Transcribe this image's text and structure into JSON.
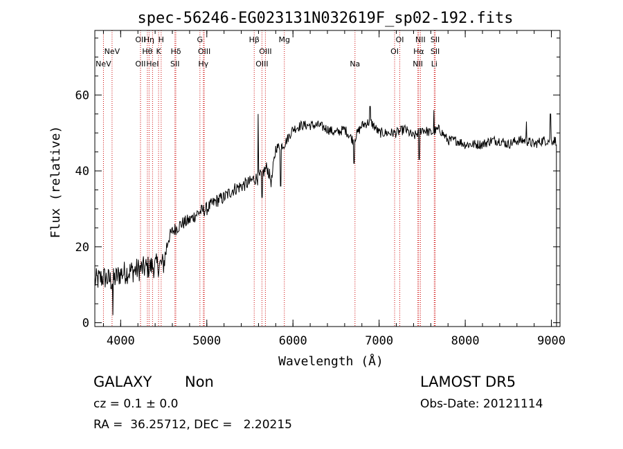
{
  "chart_data": {
    "type": "line",
    "title": "spec-56246-EG023131N032619F_sp02-192.fits",
    "xlabel": "Wavelength (Å)",
    "ylabel": "Flux (relative)",
    "xlim": [
      3700,
      9100
    ],
    "ylim": [
      -1,
      77
    ],
    "x_ticks": [
      4000,
      5000,
      6000,
      7000,
      8000,
      9000
    ],
    "y_ticks": [
      0,
      20,
      40,
      60
    ],
    "grid": false,
    "line_color": "#000000",
    "marker_color": "#cc0000",
    "spectrum_anchors": {
      "x": [
        3700,
        3800,
        3900,
        4000,
        4100,
        4200,
        4300,
        4400,
        4500,
        4550,
        4600,
        4700,
        4800,
        4900,
        5000,
        5100,
        5200,
        5300,
        5400,
        5500,
        5550,
        5600,
        5700,
        5750,
        5800,
        5900,
        6000,
        6100,
        6200,
        6300,
        6400,
        6500,
        6600,
        6700,
        6800,
        6900,
        7000,
        7100,
        7200,
        7300,
        7400,
        7500,
        7600,
        7700,
        7800,
        7900,
        8000,
        8100,
        8200,
        8300,
        8400,
        8500,
        8600,
        8700,
        8800,
        8900,
        9000,
        9060
      ],
      "y": [
        11,
        12,
        11,
        13,
        13.5,
        14,
        14.5,
        15,
        15.5,
        22,
        24,
        26,
        27,
        29,
        30,
        32,
        33,
        35,
        36,
        37,
        38,
        38,
        41,
        37,
        46,
        47,
        51,
        52,
        52,
        52,
        51,
        50,
        51,
        48,
        52,
        53,
        50,
        50,
        50,
        51,
        49,
        51,
        50,
        51,
        48,
        48,
        47,
        47,
        47,
        48,
        48,
        47,
        48,
        48,
        47,
        48,
        48,
        48
      ]
    },
    "spectral_lines": [
      {
        "label": "NeV",
        "x": 3800,
        "row": 3
      },
      {
        "label": "NeV",
        "x": 3900,
        "row": 2
      },
      {
        "label": "OII",
        "x": 4230,
        "row": 1
      },
      {
        "label": "OII",
        "x": 4230,
        "row": 3
      },
      {
        "label": "Hη",
        "x": 4330,
        "row": 1
      },
      {
        "label": "Hθ",
        "x": 4310,
        "row": 2
      },
      {
        "label": "HeI",
        "x": 4370,
        "row": 3
      },
      {
        "label": "H",
        "x": 4470,
        "row": 1
      },
      {
        "label": "K",
        "x": 4440,
        "row": 2
      },
      {
        "label": "Hδ",
        "x": 4640,
        "row": 2
      },
      {
        "label": "SII",
        "x": 4630,
        "row": 3
      },
      {
        "label": "G",
        "x": 4920,
        "row": 1
      },
      {
        "label": "OIII",
        "x": 4970,
        "row": 2
      },
      {
        "label": "Hγ",
        "x": 4960,
        "row": 3
      },
      {
        "label": "Hβ",
        "x": 5550,
        "row": 1
      },
      {
        "label": "OIII",
        "x": 5680,
        "row": 2
      },
      {
        "label": "OIII",
        "x": 5640,
        "row": 3
      },
      {
        "label": "Mg",
        "x": 5900,
        "row": 1
      },
      {
        "label": "Na",
        "x": 6720,
        "row": 3
      },
      {
        "label": "OI",
        "x": 7240,
        "row": 1
      },
      {
        "label": "OI",
        "x": 7180,
        "row": 2
      },
      {
        "label": "NII",
        "x": 7480,
        "row": 1
      },
      {
        "label": "Hα",
        "x": 7460,
        "row": 2
      },
      {
        "label": "NII",
        "x": 7450,
        "row": 3
      },
      {
        "label": "SII",
        "x": 7650,
        "row": 1
      },
      {
        "label": "SII",
        "x": 7650,
        "row": 2
      },
      {
        "label": "Li",
        "x": 7640,
        "row": 3
      }
    ]
  },
  "info": {
    "object_class": "GALAXY",
    "subclass": "Non",
    "survey": "LAMOST DR5",
    "cz": "cz = 0.1 ± 0.0",
    "obs_date": "Obs-Date: 20121114",
    "coords": "RA =  36.25712, DEC =   2.20215"
  }
}
